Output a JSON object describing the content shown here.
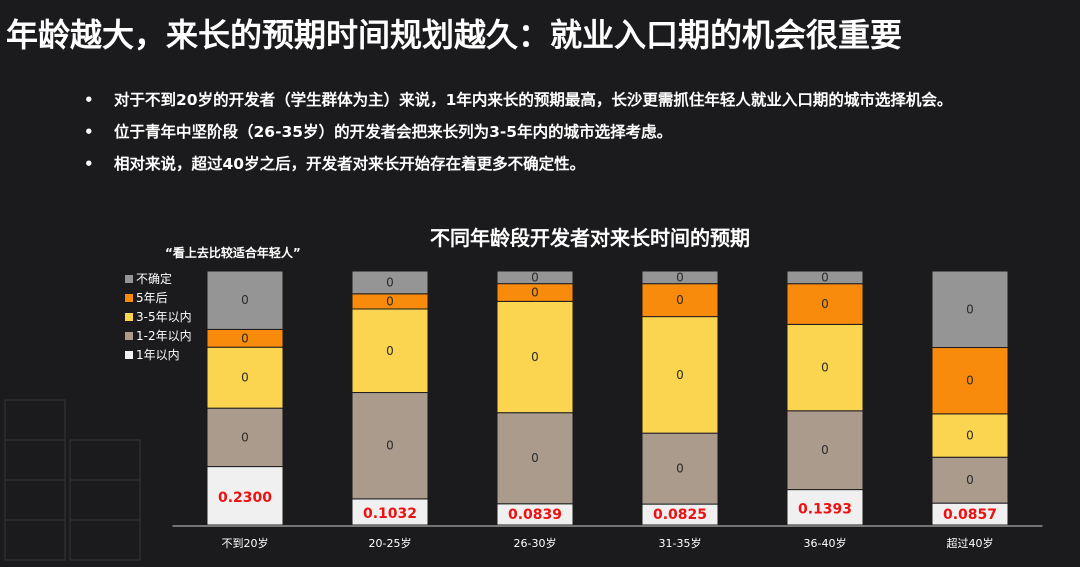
{
  "title": "年龄越大，来长的预期时间规划越久：就业入口期的机会很重要",
  "bullets": [
    "对于不到20岁的开发者（学生群体为主）来说，1年内来长的预期最高，长沙更需抓住年轻人就业入口期的城市选择机会。",
    "位于青年中坚阶段（26-35岁）的开发者会把来长列为3-5年内的城市选择考虑。",
    "相对来说，超过40岁之后，开发者对来长开始存在着更多不确定性。"
  ],
  "bullet_symbol": "•",
  "chart_note": "“看上去比较适合年轻人”",
  "colors": {
    "uncertain": "#959595",
    "after5": "#f98b0c",
    "within3to5": "#fbd54f",
    "within1to2": "#aa9b8d",
    "within1": "#f0f0f0",
    "value_red": "#ee1111"
  },
  "chart_data": {
    "type": "bar",
    "stacked": true,
    "title": "不同年龄段开发者对来长时间的预期",
    "categories": [
      "不到20岁",
      "20-25岁",
      "26-30岁",
      "31-35岁",
      "36-40岁",
      "超过40岁"
    ],
    "ylim": [
      0,
      1
    ],
    "legend_position": "left",
    "series": [
      {
        "name": "1年以内",
        "key": "within1",
        "values": [
          0.23,
          0.1032,
          0.0839,
          0.0825,
          0.1393,
          0.0857
        ],
        "labels": [
          "0.2300",
          "0.1032",
          "0.0839",
          "0.0825",
          "0.1393",
          "0.0857"
        ]
      },
      {
        "name": "1-2年以内",
        "key": "within1to2",
        "values": [
          0.23,
          0.42,
          0.36,
          0.28,
          0.31,
          0.18
        ],
        "labels": [
          "0",
          "0",
          "0",
          "0",
          "0",
          "0"
        ]
      },
      {
        "name": "3-5年以内",
        "key": "within3to5",
        "values": [
          0.24,
          0.33,
          0.44,
          0.46,
          0.34,
          0.17
        ],
        "labels": [
          "0",
          "0",
          "0",
          "0",
          "0",
          "0"
        ]
      },
      {
        "name": "5年后",
        "key": "after5",
        "values": [
          0.07,
          0.06,
          0.07,
          0.13,
          0.16,
          0.26
        ],
        "labels": [
          "0",
          "0",
          "0",
          "0",
          "0",
          "0"
        ]
      },
      {
        "name": "不确定",
        "key": "uncertain",
        "values": [
          0.23,
          0.09,
          0.05,
          0.05,
          0.05,
          0.3
        ],
        "labels": [
          "0",
          "0",
          "0",
          "0",
          "0",
          "0"
        ]
      }
    ],
    "legend_order": [
      "uncertain",
      "after5",
      "within3to5",
      "within1to2",
      "within1"
    ],
    "grid": false
  }
}
